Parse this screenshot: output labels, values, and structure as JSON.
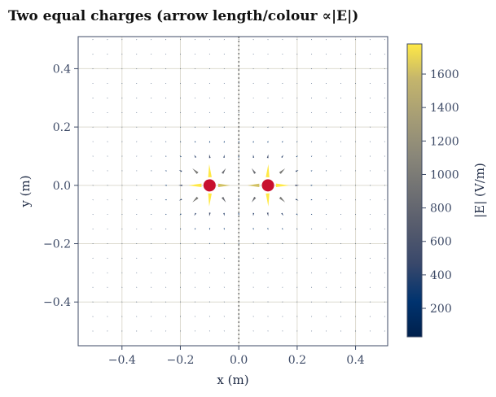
{
  "chart_data": {
    "type": "quiver",
    "title": "Two equal charges (arrow length/colour ∝|E|)",
    "xlabel": "x (m)",
    "ylabel": "y (m)",
    "xlim": [
      -0.55,
      0.51
    ],
    "ylim": [
      -0.55,
      0.51
    ],
    "xticks": [
      -0.4,
      -0.2,
      0.0,
      0.2,
      0.4
    ],
    "yticks": [
      -0.4,
      -0.2,
      0.0,
      0.2,
      0.4
    ],
    "xtick_labels": [
      "−0.4",
      "−0.2",
      "0.0",
      "0.2",
      "0.4"
    ],
    "ytick_labels": [
      "−0.4",
      "−0.2",
      "0.0",
      "0.2",
      "0.4"
    ],
    "grid": true,
    "charges": [
      {
        "x": -0.1,
        "y": 0.0,
        "sign": "+",
        "color": "#c8102e"
      },
      {
        "x": 0.1,
        "y": 0.0,
        "sign": "+",
        "color": "#c8102e"
      }
    ],
    "symmetry_line": {
      "x": 0.0,
      "style": "dotted"
    },
    "field_grid": {
      "x_start": -0.5,
      "x_end": 0.475,
      "y_start": -0.5,
      "y_end": 0.475,
      "step": 0.05
    },
    "colorbar": {
      "label": "|E| (V/m)",
      "colormap": "cividis",
      "min": 30,
      "max": 1780,
      "ticks": [
        200,
        400,
        600,
        800,
        1000,
        1200,
        1400,
        1600
      ],
      "tick_labels": [
        "200",
        "400",
        "600",
        "800",
        "1000",
        "1200",
        "1400",
        "1600"
      ]
    }
  }
}
